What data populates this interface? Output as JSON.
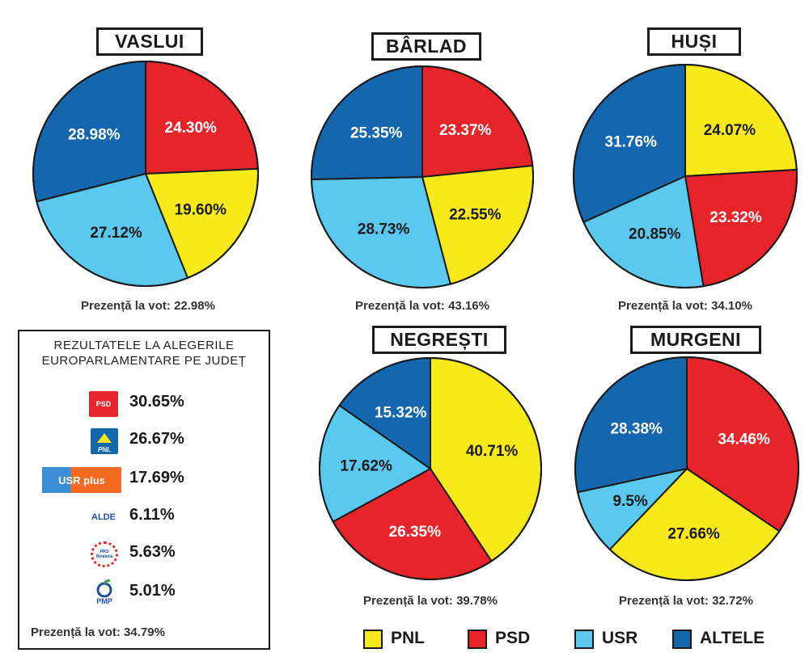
{
  "colors": {
    "PNL": "#f7e91a",
    "PSD": "#e8242b",
    "USR": "#5bc8f0",
    "ALTELE": "#1466ad"
  },
  "chart_data": [
    {
      "type": "pie",
      "title": "VASLUI",
      "turnout": "Prezență la vot: 22.98%",
      "slices": [
        {
          "name": "PSD",
          "value": 24.3,
          "label": "24.30%"
        },
        {
          "name": "PNL",
          "value": 19.6,
          "label": "19.60%"
        },
        {
          "name": "USR",
          "value": 27.12,
          "label": "27.12%"
        },
        {
          "name": "ALTELE",
          "value": 28.98,
          "label": "28.98%"
        }
      ]
    },
    {
      "type": "pie",
      "title": "BÂRLAD",
      "turnout": "Prezență la vot: 43.16%",
      "slices": [
        {
          "name": "PSD",
          "value": 23.37,
          "label": "23.37%"
        },
        {
          "name": "PNL",
          "value": 22.55,
          "label": "22.55%"
        },
        {
          "name": "USR",
          "value": 28.73,
          "label": "28.73%"
        },
        {
          "name": "ALTELE",
          "value": 25.35,
          "label": "25.35%"
        }
      ]
    },
    {
      "type": "pie",
      "title": "HUȘI",
      "turnout": "Prezență la vot: 34.10%",
      "slices": [
        {
          "name": "PNL",
          "value": 24.07,
          "label": "24.07%"
        },
        {
          "name": "PSD",
          "value": 23.32,
          "label": "23.32%"
        },
        {
          "name": "USR",
          "value": 20.85,
          "label": "20.85%"
        },
        {
          "name": "ALTELE",
          "value": 31.76,
          "label": "31.76%"
        }
      ]
    },
    {
      "type": "pie",
      "title": "NEGREȘTI",
      "turnout": "Prezență la vot: 39.78%",
      "slices": [
        {
          "name": "PNL",
          "value": 40.71,
          "label": "40.71%"
        },
        {
          "name": "PSD",
          "value": 26.35,
          "label": "26.35%"
        },
        {
          "name": "USR",
          "value": 17.62,
          "label": "17.62%"
        },
        {
          "name": "ALTELE",
          "value": 15.32,
          "label": "15.32%"
        }
      ]
    },
    {
      "type": "pie",
      "title": "MURGENI",
      "turnout": "Prezență la vot: 32.72%",
      "slices": [
        {
          "name": "PSD",
          "value": 34.46,
          "label": "34.46%"
        },
        {
          "name": "PNL",
          "value": 27.66,
          "label": "27.66%"
        },
        {
          "name": "USR",
          "value": 9.5,
          "label": "9.5%"
        },
        {
          "name": "ALTELE",
          "value": 28.38,
          "label": "28.38%"
        }
      ]
    }
  ],
  "county_results": {
    "title_line1": "REZULTATELE LA ALEGERILE",
    "title_line2": "EUROPARLAMENTARE PE JUDEȚ",
    "parties": [
      {
        "logo": "PSD",
        "logo_icon": "psd-logo-icon",
        "value": "30.65%"
      },
      {
        "logo": "PNL",
        "logo_icon": "pnl-logo-icon",
        "value": "26.67%"
      },
      {
        "logo": "USR plus",
        "logo_icon": "usr-plus-logo-icon",
        "value": "17.69%"
      },
      {
        "logo": "ALDE",
        "logo_icon": "alde-logo-icon",
        "value": "6.11%"
      },
      {
        "logo": "PRO România",
        "logo_icon": "pro-romania-logo-icon",
        "value": "5.63%"
      },
      {
        "logo": "PMP",
        "logo_icon": "pmp-logo-icon",
        "value": "5.01%"
      }
    ],
    "turnout": "Prezență la vot: 34.79%"
  },
  "legend": [
    "PNL",
    "PSD",
    "USR",
    "ALTELE"
  ]
}
